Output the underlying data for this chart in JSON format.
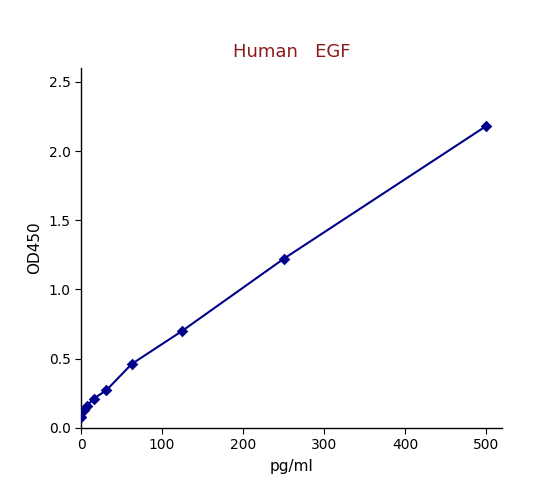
{
  "title": "Human   EGF",
  "title_color": "#8B1A1A",
  "xlabel": "pg/ml",
  "ylabel": "OD450",
  "x_data": [
    0,
    3.9,
    7.8,
    15.6,
    31.25,
    62.5,
    125,
    250,
    500
  ],
  "y_data": [
    0.08,
    0.13,
    0.16,
    0.21,
    0.27,
    0.46,
    0.7,
    1.22,
    2.18
  ],
  "line_color": "#00008B",
  "marker_color": "#00008B",
  "xlim": [
    0,
    520
  ],
  "ylim": [
    0,
    2.6
  ],
  "xticks": [
    0,
    100,
    200,
    300,
    400,
    500
  ],
  "yticks": [
    0,
    0.5,
    1.0,
    1.5,
    2.0,
    2.5
  ],
  "bg_color": "#ffffff",
  "figsize": [
    5.4,
    4.86
  ],
  "dpi": 100
}
